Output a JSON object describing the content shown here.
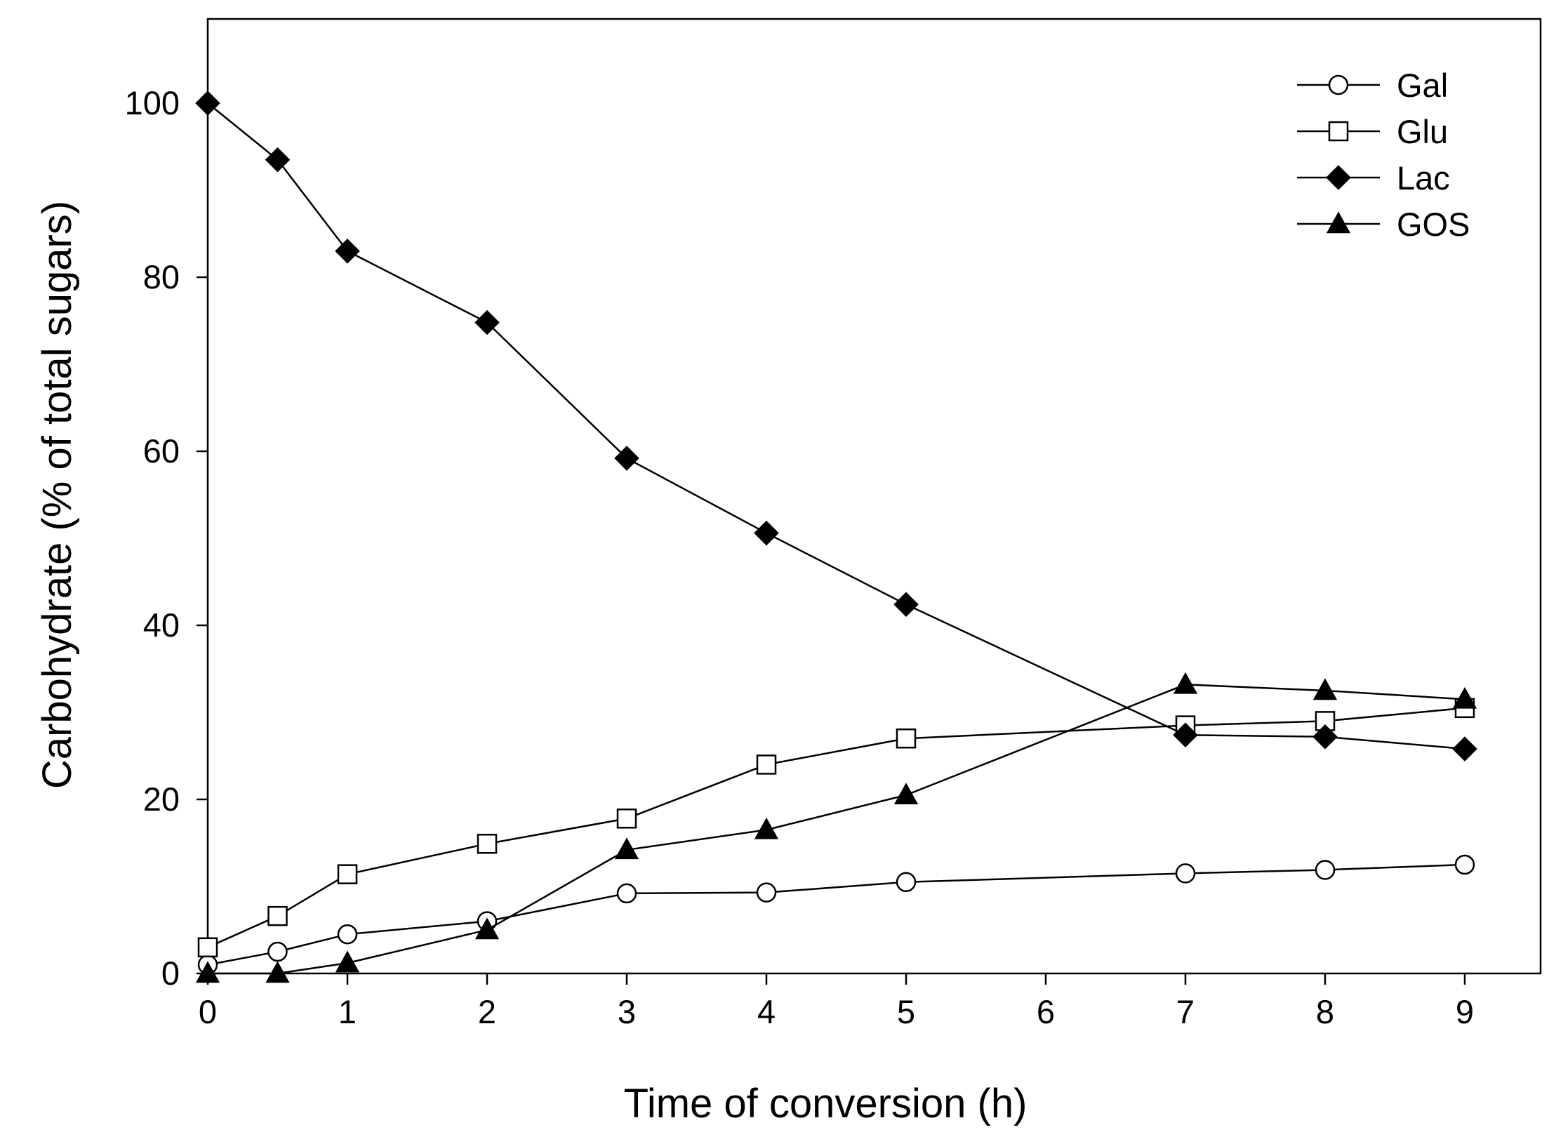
{
  "chart_data": {
    "type": "line",
    "title": "",
    "xlabel": "Time of conversion (h)",
    "ylabel": "Carbohydrate (% of total sugars)",
    "xlim": [
      0,
      9.5
    ],
    "ylim": [
      0,
      110
    ],
    "x_ticks": [
      {
        "label": "0",
        "pos": 0
      },
      {
        "label": "1",
        "pos": 1
      },
      {
        "label": "2",
        "pos": 2
      },
      {
        "label": "3",
        "pos": 3
      },
      {
        "label": "4",
        "pos": 4
      },
      {
        "label": "5",
        "pos": 5
      },
      {
        "label": "6",
        "pos": 6
      },
      {
        "label": "7",
        "pos": 7
      },
      {
        "label": "8",
        "pos": 8
      },
      {
        "label": "9",
        "pos": 9
      }
    ],
    "y_ticks": [
      0,
      20,
      40,
      60,
      80,
      100
    ],
    "legend_position": "top-right",
    "series": [
      {
        "name": "Gal",
        "marker": "circle-open",
        "x": [
          0,
          0.5,
          1,
          2,
          3,
          4,
          5,
          7,
          8,
          9
        ],
        "y": [
          1,
          2.5,
          4.5,
          6,
          9.2,
          9.3,
          10.5,
          11.5,
          11.9,
          12.5
        ]
      },
      {
        "name": "Glu",
        "marker": "square-open",
        "x": [
          0,
          0.5,
          1,
          2,
          3,
          4,
          5,
          7,
          8,
          9
        ],
        "y": [
          3,
          6.6,
          11.4,
          14.9,
          17.8,
          24,
          27,
          28.5,
          29,
          30.5
        ]
      },
      {
        "name": "Lac",
        "marker": "diamond-filled",
        "x": [
          0,
          0.5,
          1,
          2,
          3,
          4,
          5,
          7,
          8,
          9
        ],
        "y": [
          100,
          93.5,
          83,
          74.8,
          59.2,
          50.6,
          42.4,
          27.4,
          27.2,
          25.8
        ]
      },
      {
        "name": "GOS",
        "marker": "triangle-filled",
        "x": [
          0,
          0.5,
          1,
          2,
          3,
          4,
          5,
          7,
          8,
          9
        ],
        "y": [
          0,
          0,
          1.2,
          5,
          14.2,
          16.5,
          20.5,
          33.2,
          32.5,
          31.5
        ]
      }
    ]
  }
}
